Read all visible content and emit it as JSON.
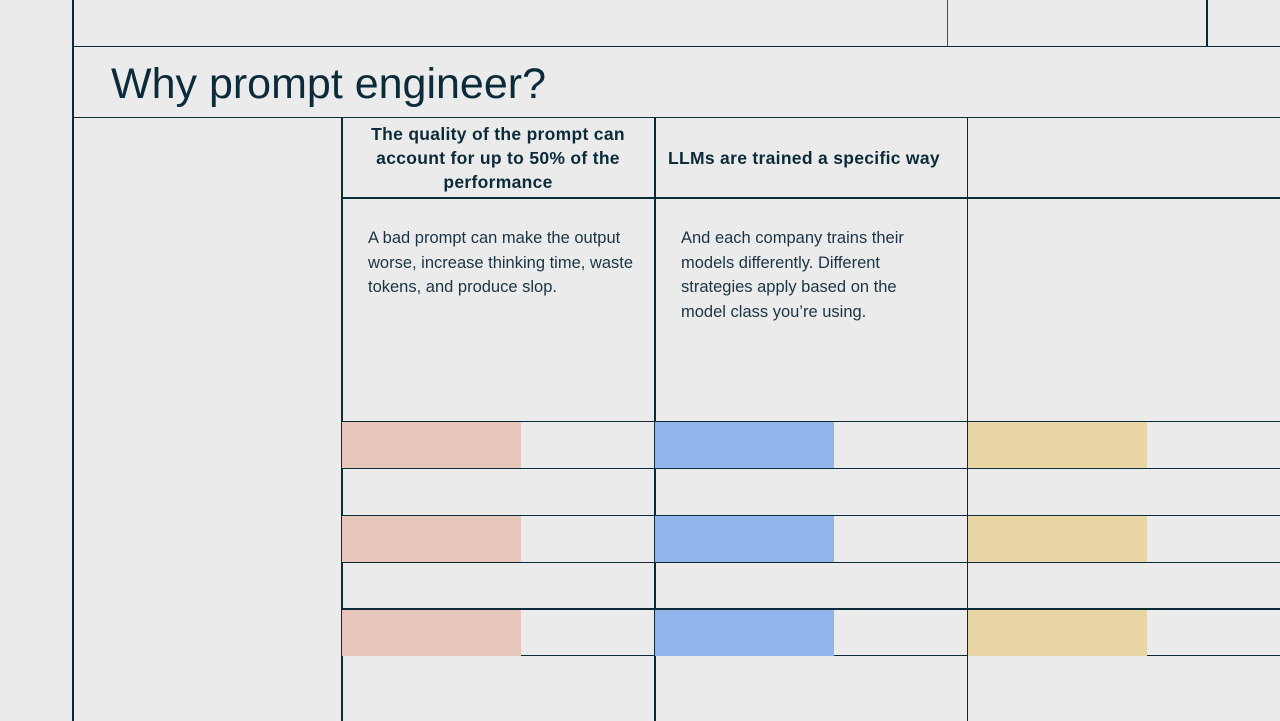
{
  "slide": {
    "title": "Why prompt engineer?"
  },
  "columns": [
    {
      "heading": "The quality of the prompt can account for up to 50% of the performance",
      "body": "A bad prompt can make the output worse, increase thinking time, waste tokens, and produce slop.",
      "accent_color": "#e6c5bb"
    },
    {
      "heading": "LLMs are trained a specific way",
      "body": "And each company trains their models differently. Different strategies apply based on the model class you’re using.",
      "accent_color": "#91b4ea"
    },
    {
      "heading": "",
      "body": "",
      "accent_color": "#e8d6a4"
    }
  ],
  "colors": {
    "background": "#ebebeb",
    "line": "#0b2a3a",
    "text": "#0b2a3a"
  }
}
